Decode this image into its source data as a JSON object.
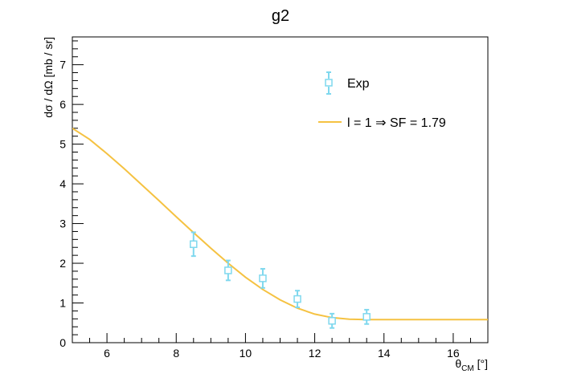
{
  "chart_data": {
    "type": "scatter",
    "title": "g2",
    "xlabel": "θ",
    "xlabel_sub": "CM",
    "xlabel_unit": " [°]",
    "ylabel": "dσ / dΩ [mb / sr]",
    "xlim": [
      5,
      17
    ],
    "ylim": [
      0,
      7.7
    ],
    "x_ticks": [
      6,
      8,
      10,
      12,
      14,
      16
    ],
    "x_tick_labels": [
      "6",
      "8",
      "10",
      "12",
      "14",
      "16"
    ],
    "y_ticks": [
      0,
      1,
      2,
      3,
      4,
      5,
      6,
      7
    ],
    "y_tick_labels": [
      "0",
      "1",
      "2",
      "3",
      "4",
      "5",
      "6",
      "7"
    ],
    "legend_position": "top-right",
    "series": [
      {
        "name": "Exp",
        "kind": "points",
        "color": "#7fd8ee",
        "marker": "open-square",
        "x": [
          8.5,
          9.5,
          10.5,
          11.5,
          12.5,
          13.5
        ],
        "y": [
          2.48,
          1.82,
          1.62,
          1.1,
          0.55,
          0.65
        ],
        "yerr": [
          0.3,
          0.25,
          0.24,
          0.21,
          0.18,
          0.18
        ]
      },
      {
        "name": "l = 1 ⇒ SF = 1.79",
        "kind": "line",
        "color": "#f5c242",
        "x": [
          5,
          5.5,
          6,
          6.5,
          7,
          7.5,
          8,
          8.5,
          9,
          9.5,
          10,
          10.5,
          11,
          11.5,
          12,
          12.5,
          13,
          13.5,
          14,
          15,
          16,
          17
        ],
        "y": [
          5.4,
          5.12,
          4.76,
          4.38,
          3.98,
          3.58,
          3.17,
          2.77,
          2.38,
          2.0,
          1.65,
          1.34,
          1.08,
          0.87,
          0.72,
          0.63,
          0.59,
          0.58,
          0.58,
          0.58,
          0.58,
          0.58
        ]
      }
    ]
  }
}
